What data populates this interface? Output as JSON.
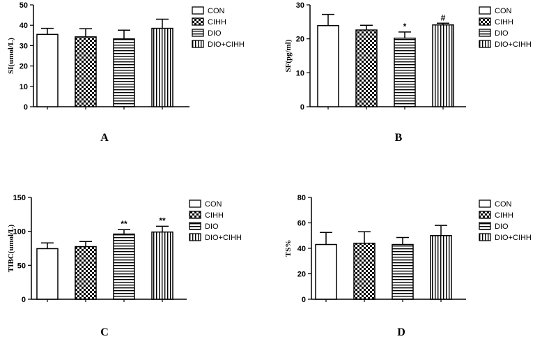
{
  "legend": {
    "entries": [
      "CON",
      "CIHH",
      "DIO",
      "DIO+CIHH"
    ],
    "swatches": [
      "open",
      "checker",
      "hstripe",
      "vstripe"
    ]
  },
  "chart_data": [
    {
      "type": "bar",
      "panel_label": "A",
      "categories": [
        "CON",
        "CIHH",
        "DIO",
        "DIO+CIHH"
      ],
      "values": [
        35.5,
        34.3,
        33.3,
        38.5
      ],
      "errors": [
        3.0,
        4.0,
        4.3,
        4.5
      ],
      "annotations": [
        "",
        "",
        "",
        ""
      ],
      "ylabel": "SI(umol/L)",
      "ylim": [
        0,
        50
      ],
      "yticks": [
        0,
        10,
        20,
        30,
        40,
        50
      ],
      "legend_position": "right"
    },
    {
      "type": "bar",
      "panel_label": "B",
      "categories": [
        "CON",
        "CIHH",
        "DIO",
        "DIO+CIHH"
      ],
      "values": [
        23.9,
        22.6,
        20.2,
        24.1
      ],
      "errors": [
        3.3,
        1.4,
        1.8,
        0.5
      ],
      "annotations": [
        "",
        "",
        "*",
        "#"
      ],
      "ylabel": "SF(pg/ml)",
      "ylim": [
        0,
        30
      ],
      "yticks": [
        0,
        10,
        20,
        30
      ],
      "legend_position": "right"
    },
    {
      "type": "bar",
      "panel_label": "C",
      "categories": [
        "CON",
        "CIHH",
        "DIO",
        "DIO+CIHH"
      ],
      "values": [
        74.5,
        77.5,
        96.0,
        99.0
      ],
      "errors": [
        8.5,
        7.5,
        6.5,
        8.5
      ],
      "annotations": [
        "",
        "",
        "**",
        "**"
      ],
      "ylabel": "TIBC(umol/L)",
      "ylim": [
        0,
        150
      ],
      "yticks": [
        0,
        50,
        100,
        150
      ],
      "legend_position": "right"
    },
    {
      "type": "bar",
      "panel_label": "D",
      "categories": [
        "CON",
        "CIHH",
        "DIO",
        "DIO+CIHH"
      ],
      "values": [
        43.0,
        44.0,
        43.0,
        50.0
      ],
      "errors": [
        9.5,
        9.0,
        5.5,
        8.0
      ],
      "annotations": [
        "",
        "",
        "",
        ""
      ],
      "ylabel": "TS%",
      "ylim": [
        0,
        80
      ],
      "yticks": [
        0,
        20,
        40,
        60,
        80
      ],
      "legend_position": "right"
    }
  ]
}
